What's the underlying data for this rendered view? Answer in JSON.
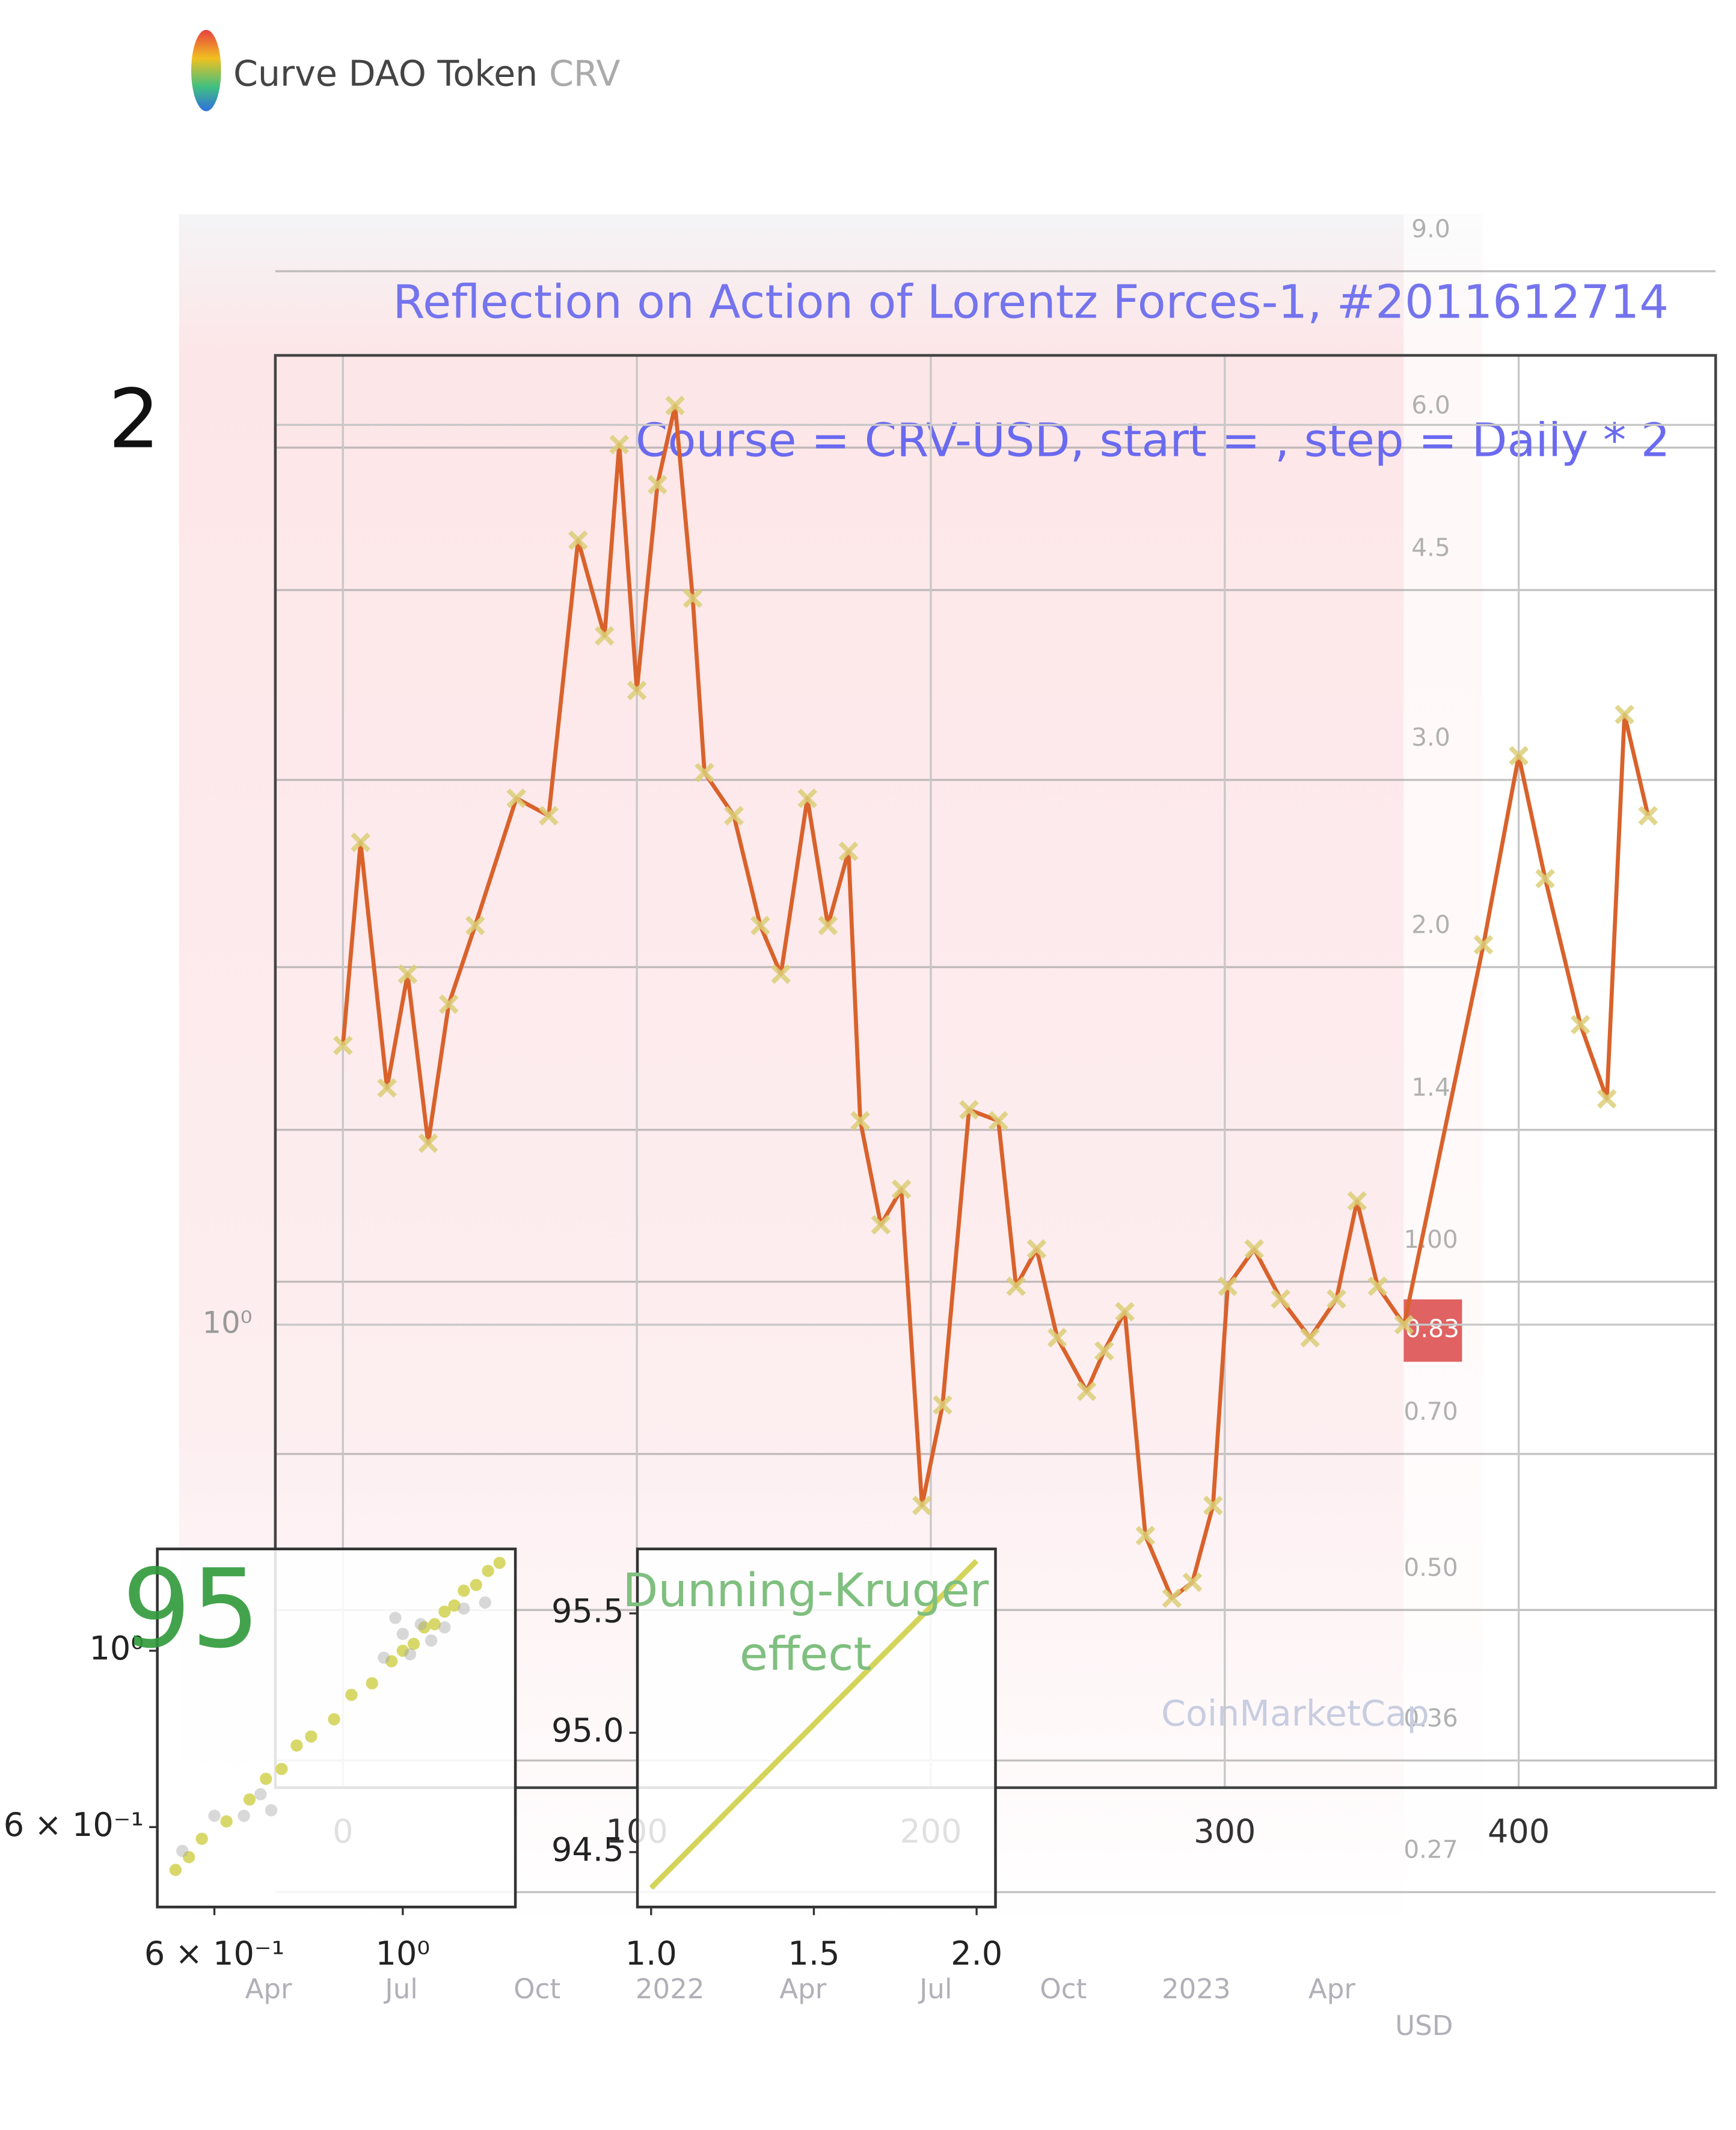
{
  "header": {
    "name": "Curve DAO Token",
    "ticker": "CRV"
  },
  "screenshot": {
    "price_axis": [
      "9.0",
      "6.0",
      "4.5",
      "3.0",
      "2.0",
      "1.4",
      "1.00",
      "0.70",
      "0.50",
      "0.36",
      "0.27"
    ],
    "price_badge": "0.83",
    "time_axis": [
      "Apr",
      "Jul",
      "Oct",
      "2022",
      "Apr",
      "Jul",
      "Oct",
      "2023",
      "Apr"
    ],
    "currency": "USD",
    "watermark": "CoinMarketCap"
  },
  "chart_data": [
    {
      "type": "line",
      "title": "Reflection on Action of Lorentz Forces-1, #2011612714",
      "subtitle": "Course = CRV-USD, start = , step = Daily * 2",
      "x": [
        0,
        6,
        15,
        22,
        29,
        36,
        45,
        59,
        70,
        80,
        89,
        94,
        100,
        107,
        113,
        119,
        123,
        133,
        142,
        149,
        158,
        165,
        172,
        176,
        183,
        190,
        197,
        204,
        213,
        223,
        229,
        236,
        243,
        253,
        259,
        266,
        273,
        282,
        289,
        296,
        301,
        310,
        319,
        329,
        338,
        345,
        352,
        361,
        388,
        400,
        409,
        421,
        430,
        436,
        444
      ],
      "values": [
        1.24,
        1.45,
        1.2,
        1.31,
        1.15,
        1.28,
        1.36,
        1.5,
        1.48,
        1.83,
        1.7,
        1.97,
        1.63,
        1.91,
        2.03,
        1.75,
        1.53,
        1.48,
        1.36,
        1.31,
        1.5,
        1.36,
        1.44,
        1.17,
        1.08,
        1.11,
        0.87,
        0.94,
        1.18,
        1.17,
        1.03,
        1.06,
        0.99,
        0.95,
        0.98,
        1.01,
        0.85,
        0.81,
        0.82,
        0.87,
        1.03,
        1.06,
        1.02,
        0.99,
        1.02,
        1.1,
        1.03,
        1.0,
        1.34,
        1.55,
        1.41,
        1.26,
        1.19,
        1.6,
        1.48
      ],
      "color": "#d9622b",
      "marker": "x",
      "marker_color": "#dccf78",
      "xlim": [
        -23,
        467
      ],
      "ylim": [
        0.7,
        2.11
      ],
      "log_y": true,
      "xticks": [
        0,
        100,
        200,
        300,
        400
      ],
      "yticks": [
        {
          "value": 1,
          "label": "10⁰"
        },
        2
      ],
      "grid": true
    },
    {
      "type": "scatter",
      "annotation": "95",
      "log_x": true,
      "log_y": true,
      "xlim": [
        0.514,
        1.357
      ],
      "ylim": [
        0.476,
        1.343
      ],
      "xticks": [
        {
          "value": 0.6,
          "label": "6 × 10⁻¹"
        },
        {
          "value": 1,
          "label": "10⁰"
        }
      ],
      "yticks": [
        {
          "value": 0.6,
          "label": "6 × 10⁻¹"
        },
        {
          "value": 1,
          "label": "10⁰"
        }
      ],
      "series": [
        {
          "color": "#d4d45a",
          "x": [
            0.54,
            0.56,
            0.58,
            0.62,
            0.66,
            0.69,
            0.72,
            0.75,
            0.78,
            0.83,
            0.87,
            0.92,
            0.97,
            1.0,
            1.03,
            1.06,
            1.09,
            1.12,
            1.15,
            1.18,
            1.22,
            1.26,
            1.3
          ],
          "values": [
            0.53,
            0.55,
            0.58,
            0.61,
            0.65,
            0.69,
            0.71,
            0.76,
            0.78,
            0.82,
            0.88,
            0.91,
            0.97,
            1.0,
            1.02,
            1.07,
            1.08,
            1.12,
            1.14,
            1.19,
            1.21,
            1.26,
            1.29
          ]
        },
        {
          "color": "#a8a8a8",
          "x": [
            0.55,
            0.6,
            0.65,
            0.7,
            0.68,
            0.95,
            1.0,
            1.02,
            1.08,
            1.12,
            1.18,
            1.25,
            0.98,
            1.05
          ],
          "values": [
            0.56,
            0.62,
            0.62,
            0.63,
            0.66,
            0.98,
            1.05,
            0.99,
            1.03,
            1.07,
            1.13,
            1.15,
            1.1,
            1.08
          ]
        }
      ]
    },
    {
      "type": "line",
      "annotation": [
        "Dunning-Kruger",
        "effect"
      ],
      "x": [
        1.0,
        2.0
      ],
      "values": [
        94.35,
        95.72
      ],
      "color": "#d4d45a",
      "xlim": [
        0.958,
        2.058
      ],
      "ylim": [
        94.27,
        95.77
      ],
      "xticks": [
        {
          "value": 1,
          "label": "1.0"
        },
        1.5,
        {
          "value": 2,
          "label": "2.0"
        }
      ],
      "yticks": [
        94.5,
        {
          "value": 95,
          "label": "95.0"
        },
        95.5
      ]
    }
  ]
}
